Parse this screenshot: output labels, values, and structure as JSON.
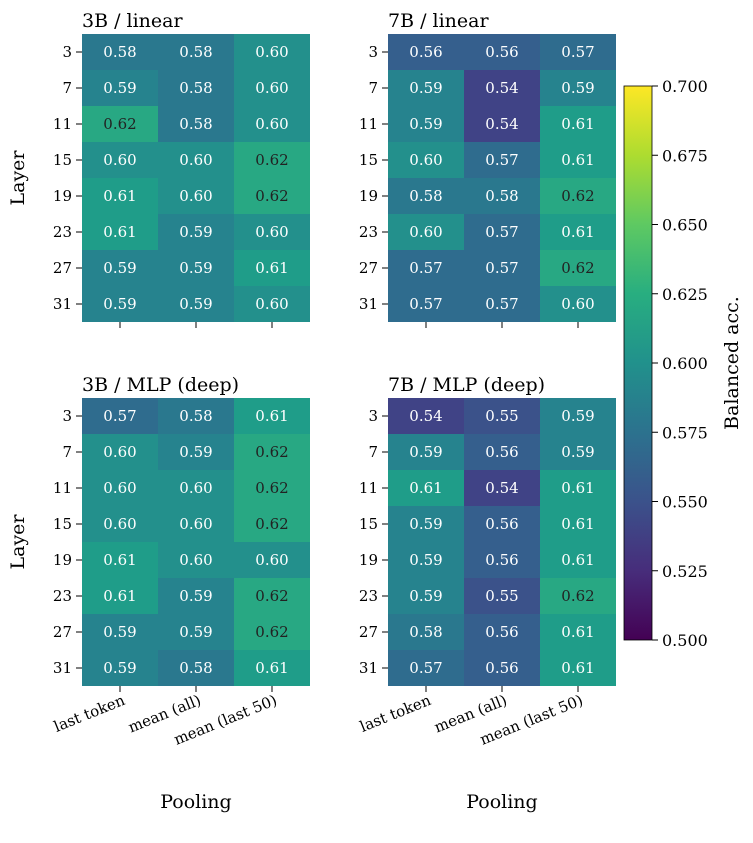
{
  "chart_data": {
    "type": "heatmap",
    "colormap": "viridis",
    "colorbar": {
      "label": "Balanced acc.",
      "range": [
        0.5,
        0.7
      ],
      "ticks": [
        "0.500",
        "0.525",
        "0.550",
        "0.575",
        "0.600",
        "0.625",
        "0.650",
        "0.675",
        "0.700"
      ]
    },
    "xlabel": "Pooling",
    "ylabel": "Layer",
    "x_categories": [
      "last token",
      "mean (all)",
      "mean (last 50)"
    ],
    "y_categories": [
      "3",
      "7",
      "11",
      "15",
      "19",
      "23",
      "27",
      "31"
    ],
    "panels": [
      {
        "title": "3B / linear",
        "values": [
          [
            0.58,
            0.58,
            0.6
          ],
          [
            0.59,
            0.58,
            0.6
          ],
          [
            0.62,
            0.58,
            0.6
          ],
          [
            0.6,
            0.6,
            0.62
          ],
          [
            0.61,
            0.6,
            0.62
          ],
          [
            0.61,
            0.59,
            0.6
          ],
          [
            0.59,
            0.59,
            0.61
          ],
          [
            0.59,
            0.59,
            0.6
          ]
        ]
      },
      {
        "title": "7B / linear",
        "values": [
          [
            0.56,
            0.56,
            0.57
          ],
          [
            0.59,
            0.54,
            0.59
          ],
          [
            0.59,
            0.54,
            0.61
          ],
          [
            0.6,
            0.57,
            0.61
          ],
          [
            0.58,
            0.58,
            0.62
          ],
          [
            0.6,
            0.57,
            0.61
          ],
          [
            0.57,
            0.57,
            0.62
          ],
          [
            0.57,
            0.57,
            0.6
          ]
        ]
      },
      {
        "title": "3B / MLP (deep)",
        "values": [
          [
            0.57,
            0.58,
            0.61
          ],
          [
            0.6,
            0.59,
            0.62
          ],
          [
            0.6,
            0.6,
            0.62
          ],
          [
            0.6,
            0.6,
            0.62
          ],
          [
            0.61,
            0.6,
            0.6
          ],
          [
            0.61,
            0.59,
            0.62
          ],
          [
            0.59,
            0.59,
            0.62
          ],
          [
            0.59,
            0.58,
            0.61
          ]
        ]
      },
      {
        "title": "7B / MLP (deep)",
        "values": [
          [
            0.54,
            0.55,
            0.59
          ],
          [
            0.59,
            0.56,
            0.59
          ],
          [
            0.61,
            0.54,
            0.61
          ],
          [
            0.59,
            0.56,
            0.61
          ],
          [
            0.59,
            0.56,
            0.61
          ],
          [
            0.59,
            0.55,
            0.62
          ],
          [
            0.58,
            0.56,
            0.61
          ],
          [
            0.57,
            0.56,
            0.61
          ]
        ]
      }
    ]
  }
}
